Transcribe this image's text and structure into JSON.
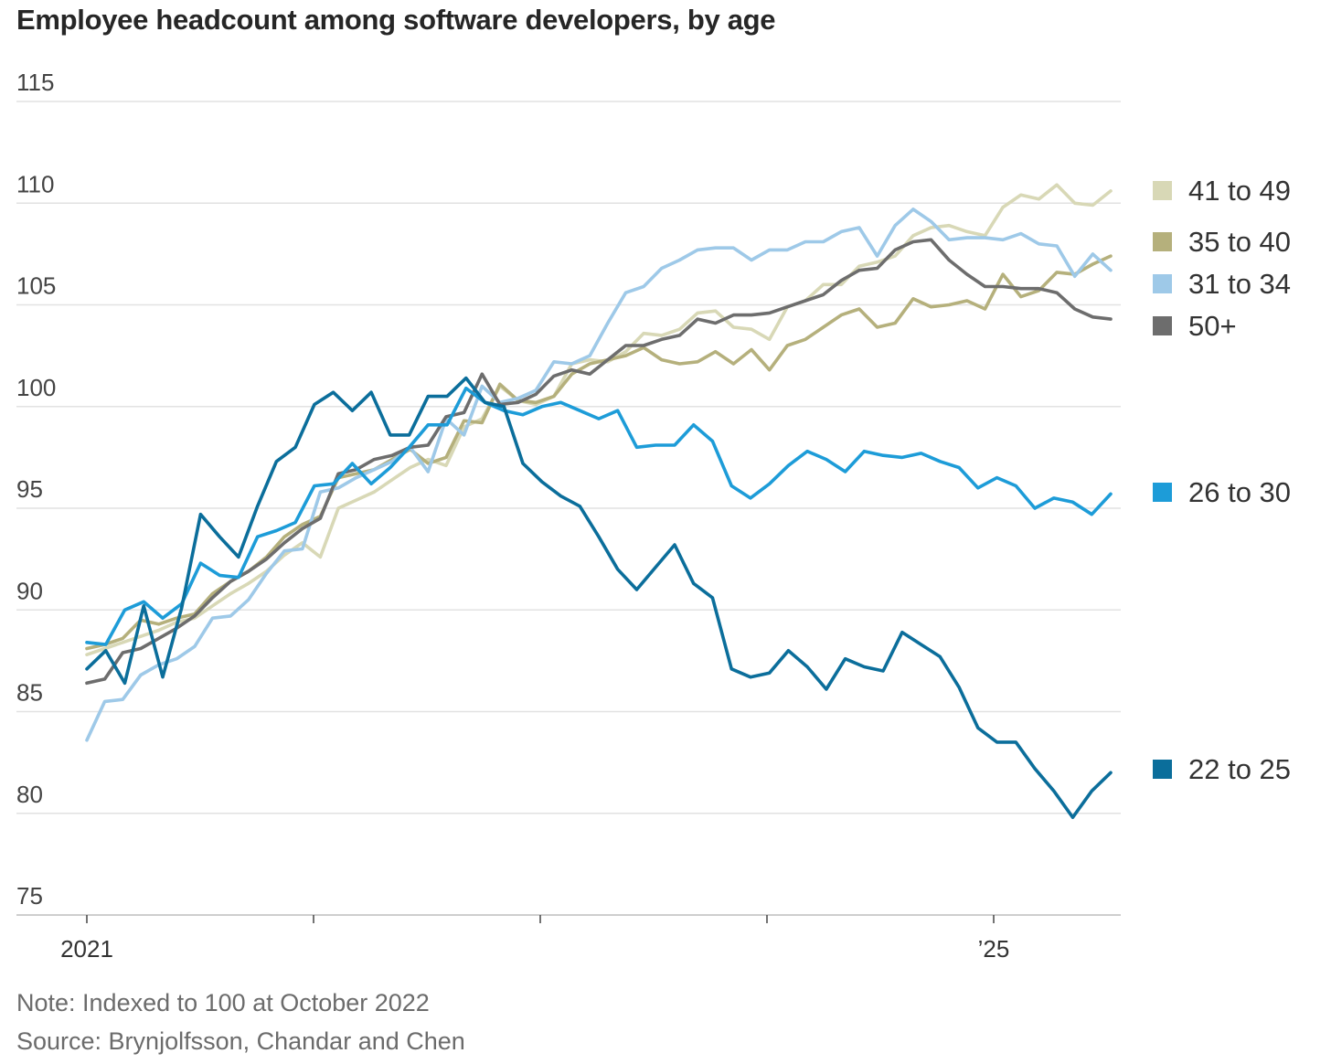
{
  "title": "Employee headcount among software developers, by age",
  "note": "Note: Indexed to 100 at October 2022",
  "source": "Source: Brynjolfsson, Chandar and Chen",
  "chart_data": {
    "type": "line",
    "title": "Employee headcount among software developers, by age",
    "xlabel": "",
    "ylabel": "",
    "x_start": "2021-01",
    "x_end": "2025-07",
    "x_ticks": [
      {
        "date": "2021-01",
        "label": "2021"
      },
      {
        "date": "2022-01",
        "label": ""
      },
      {
        "date": "2023-01",
        "label": ""
      },
      {
        "date": "2024-01",
        "label": ""
      },
      {
        "date": "2025-01",
        "label": "’25"
      }
    ],
    "ylim": [
      75,
      115
    ],
    "yticks": [
      75,
      80,
      85,
      90,
      95,
      100,
      105,
      110,
      115
    ],
    "grid": true,
    "legend_position": "right, at line ends",
    "series": [
      {
        "name": "41 to 49",
        "color": "#d8d8b6",
        "values": [
          87.8,
          88.1,
          88.4,
          88.7,
          89.0,
          89.4,
          89.6,
          90.2,
          90.8,
          91.3,
          91.9,
          92.7,
          93.3,
          92.6,
          95.0,
          95.4,
          95.8,
          96.4,
          97.0,
          97.4,
          97.1,
          99.0,
          99.4,
          101.0,
          100.3,
          100.1,
          100.5,
          102.1,
          102.3,
          102.2,
          102.7,
          103.6,
          103.5,
          103.8,
          104.6,
          104.7,
          103.9,
          103.8,
          103.3,
          104.9,
          105.2,
          106.0,
          106.0,
          106.9,
          107.1,
          107.4,
          108.4,
          108.8,
          108.9,
          108.6,
          108.4,
          109.8,
          110.4,
          110.2,
          110.9,
          110.0,
          109.9,
          110.6
        ]
      },
      {
        "name": "35 to 40",
        "color": "#b5b07c",
        "values": [
          88.1,
          88.3,
          88.6,
          89.5,
          89.3,
          89.6,
          89.8,
          90.8,
          91.4,
          91.9,
          92.6,
          93.6,
          94.2,
          94.6,
          96.5,
          96.7,
          96.9,
          97.4,
          97.9,
          97.2,
          97.5,
          99.3,
          99.2,
          101.1,
          100.3,
          100.2,
          100.5,
          101.6,
          102.1,
          102.3,
          102.5,
          102.9,
          102.3,
          102.1,
          102.2,
          102.7,
          102.1,
          102.8,
          101.8,
          103.0,
          103.3,
          103.9,
          104.5,
          104.8,
          103.9,
          104.1,
          105.3,
          104.9,
          105.0,
          105.2,
          104.8,
          106.5,
          105.4,
          105.7,
          106.6,
          106.5,
          107.0,
          107.4
        ]
      },
      {
        "name": "31 to 34",
        "color": "#9ec9e8",
        "values": [
          83.6,
          85.5,
          85.6,
          86.8,
          87.3,
          87.6,
          88.2,
          89.6,
          89.7,
          90.5,
          91.8,
          92.9,
          93.0,
          95.8,
          96.0,
          96.5,
          96.9,
          97.3,
          98.0,
          96.8,
          99.4,
          98.6,
          101.0,
          100.2,
          100.4,
          100.8,
          102.2,
          102.1,
          102.5,
          104.1,
          105.6,
          105.9,
          106.8,
          107.2,
          107.7,
          107.8,
          107.8,
          107.2,
          107.7,
          107.7,
          108.1,
          108.1,
          108.6,
          108.8,
          107.4,
          108.9,
          109.7,
          109.1,
          108.2,
          108.3,
          108.3,
          108.2,
          108.5,
          108.0,
          107.9,
          106.4,
          107.5,
          106.7
        ]
      },
      {
        "name": "50+",
        "color": "#6d6d6d",
        "values": [
          86.4,
          86.6,
          87.9,
          88.1,
          88.6,
          89.1,
          89.7,
          90.6,
          91.4,
          91.9,
          92.5,
          93.3,
          94.0,
          94.5,
          96.7,
          96.9,
          97.4,
          97.6,
          98.0,
          98.1,
          99.5,
          99.7,
          101.6,
          100.1,
          100.2,
          100.6,
          101.5,
          101.8,
          101.6,
          102.3,
          103.0,
          103.0,
          103.3,
          103.5,
          104.3,
          104.1,
          104.5,
          104.5,
          104.6,
          104.9,
          105.2,
          105.5,
          106.2,
          106.7,
          106.8,
          107.7,
          108.1,
          108.2,
          107.2,
          106.5,
          105.9,
          105.9,
          105.8,
          105.8,
          105.6,
          104.8,
          104.4,
          104.3
        ]
      },
      {
        "name": "26 to 30",
        "color": "#1d9cd8",
        "values": [
          88.4,
          88.3,
          90.0,
          90.4,
          89.6,
          90.3,
          92.3,
          91.7,
          91.6,
          93.6,
          93.9,
          94.3,
          96.1,
          96.2,
          97.2,
          96.2,
          97.0,
          98.0,
          99.1,
          99.1,
          100.9,
          100.2,
          99.8,
          99.6,
          100.0,
          100.2,
          99.8,
          99.4,
          99.8,
          98.0,
          98.1,
          98.1,
          99.1,
          98.3,
          96.1,
          95.5,
          96.2,
          97.1,
          97.8,
          97.4,
          96.8,
          97.8,
          97.6,
          97.5,
          97.7,
          97.3,
          97.0,
          96.0,
          96.5,
          96.1,
          95.0,
          95.5,
          95.3,
          94.7,
          95.7
        ]
      },
      {
        "name": "22 to 25",
        "color": "#0b6e9b",
        "values": [
          87.1,
          88.0,
          86.4,
          90.2,
          86.7,
          90.1,
          94.7,
          93.6,
          92.6,
          95.1,
          97.3,
          98.0,
          100.1,
          100.7,
          99.8,
          100.7,
          98.6,
          98.6,
          100.5,
          100.5,
          101.4,
          100.2,
          100.0,
          97.2,
          96.3,
          95.6,
          95.1,
          93.6,
          92.0,
          91.0,
          92.1,
          93.2,
          91.3,
          90.6,
          87.1,
          86.7,
          86.9,
          88.0,
          87.2,
          86.1,
          87.6,
          87.2,
          87.0,
          88.9,
          88.3,
          87.7,
          86.2,
          84.2,
          83.5,
          83.5,
          82.2,
          81.1,
          79.8,
          81.1,
          82.0
        ]
      }
    ]
  }
}
